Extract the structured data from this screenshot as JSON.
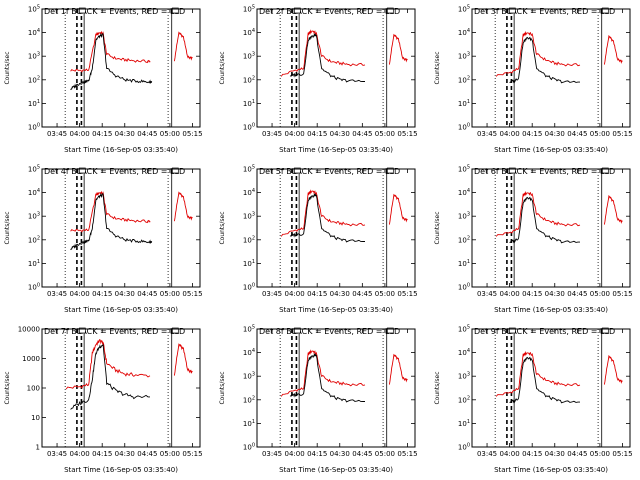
{
  "chart_data": {
    "type": "line",
    "layout": "3x3 grid",
    "y_scale": "log",
    "x_ticks": [
      "03:45",
      "04:00",
      "04:15",
      "04:30",
      "04:45",
      "05:00",
      "05:15"
    ],
    "x_range": [
      "03:35",
      "05:20"
    ],
    "xlabel": "Start Time (16-Sep-05 03:35:40)",
    "ylabel": "Counts/sec",
    "colors": {
      "events": "#000000",
      "lld": "#e00000"
    },
    "panels": [
      {
        "title": "Det 1f BLACK = Events, RED = LLD",
        "y_tick_labels": [
          "10^0",
          "10^1",
          "10^2",
          "10^3",
          "10^4",
          "10^5"
        ],
        "ylim": [
          1,
          100000
        ],
        "events": [
          [
            3.9,
            40
          ],
          [
            3.95,
            55
          ],
          [
            4.0,
            70
          ],
          [
            4.05,
            80
          ],
          [
            4.1,
            90
          ],
          [
            4.14,
            300
          ],
          [
            4.18,
            5000
          ],
          [
            4.22,
            7000
          ],
          [
            4.26,
            8000
          ],
          [
            4.3,
            300
          ],
          [
            4.4,
            150
          ],
          [
            4.5,
            100
          ],
          [
            4.6,
            90
          ],
          [
            4.7,
            85
          ],
          [
            4.78,
            80
          ],
          [
            4.8,
            85
          ]
        ],
        "lld": [
          [
            3.9,
            250
          ],
          [
            4.0,
            250
          ],
          [
            4.1,
            260
          ],
          [
            4.18,
            8000
          ],
          [
            4.22,
            10000
          ],
          [
            4.26,
            9000
          ],
          [
            4.3,
            1200
          ],
          [
            4.4,
            800
          ],
          [
            4.5,
            700
          ],
          [
            4.6,
            650
          ],
          [
            4.75,
            600
          ],
          [
            4.78,
            620
          ],
          [
            5.05,
            700
          ],
          [
            5.1,
            10000
          ],
          [
            5.15,
            6000
          ],
          [
            5.2,
            900
          ],
          [
            5.25,
            850
          ]
        ]
      },
      {
        "title": "Det 2f BLACK = Events, RED = LLD",
        "y_tick_labels": [
          "10^0",
          "10^1",
          "10^2",
          "10^3",
          "10^4",
          "10^5"
        ],
        "ylim": [
          1,
          100000
        ],
        "events": [
          [
            3.95,
            150
          ],
          [
            4.0,
            160
          ],
          [
            4.1,
            180
          ],
          [
            4.15,
            5000
          ],
          [
            4.2,
            7000
          ],
          [
            4.24,
            8000
          ],
          [
            4.3,
            300
          ],
          [
            4.4,
            150
          ],
          [
            4.5,
            100
          ],
          [
            4.6,
            90
          ],
          [
            4.78,
            85
          ]
        ],
        "lld": [
          [
            3.85,
            150
          ],
          [
            4.0,
            250
          ],
          [
            4.1,
            300
          ],
          [
            4.15,
            9000
          ],
          [
            4.2,
            12000
          ],
          [
            4.24,
            9000
          ],
          [
            4.3,
            1000
          ],
          [
            4.4,
            600
          ],
          [
            4.5,
            500
          ],
          [
            4.6,
            450
          ],
          [
            4.78,
            430
          ],
          [
            5.05,
            500
          ],
          [
            5.1,
            8000
          ],
          [
            5.15,
            5000
          ],
          [
            5.2,
            800
          ],
          [
            5.25,
            700
          ]
        ]
      },
      {
        "title": "Det 3f BLACK = Events, RED = LLD",
        "y_tick_labels": [
          "10^0",
          "10^1",
          "10^2",
          "10^3",
          "10^4",
          "10^5"
        ],
        "ylim": [
          1,
          100000
        ],
        "events": [
          [
            4.0,
            80
          ],
          [
            4.05,
            90
          ],
          [
            4.1,
            120
          ],
          [
            4.15,
            4000
          ],
          [
            4.2,
            6000
          ],
          [
            4.25,
            5000
          ],
          [
            4.3,
            300
          ],
          [
            4.4,
            150
          ],
          [
            4.5,
            100
          ],
          [
            4.6,
            80
          ],
          [
            4.78,
            80
          ]
        ],
        "lld": [
          [
            3.85,
            150
          ],
          [
            4.0,
            200
          ],
          [
            4.1,
            300
          ],
          [
            4.15,
            8000
          ],
          [
            4.2,
            10000
          ],
          [
            4.25,
            8000
          ],
          [
            4.3,
            1200
          ],
          [
            4.4,
            700
          ],
          [
            4.5,
            500
          ],
          [
            4.6,
            450
          ],
          [
            4.78,
            420
          ],
          [
            5.05,
            500
          ],
          [
            5.1,
            7000
          ],
          [
            5.15,
            4000
          ],
          [
            5.2,
            700
          ],
          [
            5.25,
            600
          ]
        ]
      },
      {
        "title": "Det 4f BLACK = Events, RED = LLD",
        "y_tick_labels": [
          "10^0",
          "10^1",
          "10^2",
          "10^3",
          "10^4",
          "10^5"
        ],
        "ylim": [
          1,
          100000
        ],
        "events": [
          [
            3.9,
            40
          ],
          [
            3.95,
            55
          ],
          [
            4.0,
            70
          ],
          [
            4.05,
            80
          ],
          [
            4.1,
            90
          ],
          [
            4.14,
            300
          ],
          [
            4.18,
            5000
          ],
          [
            4.22,
            7000
          ],
          [
            4.26,
            8000
          ],
          [
            4.3,
            300
          ],
          [
            4.4,
            150
          ],
          [
            4.5,
            100
          ],
          [
            4.6,
            90
          ],
          [
            4.7,
            85
          ],
          [
            4.78,
            80
          ],
          [
            4.8,
            85
          ]
        ],
        "lld": [
          [
            3.9,
            250
          ],
          [
            4.0,
            250
          ],
          [
            4.1,
            260
          ],
          [
            4.18,
            8000
          ],
          [
            4.22,
            10000
          ],
          [
            4.26,
            9000
          ],
          [
            4.3,
            1200
          ],
          [
            4.4,
            800
          ],
          [
            4.5,
            700
          ],
          [
            4.6,
            650
          ],
          [
            4.75,
            600
          ],
          [
            4.78,
            620
          ],
          [
            5.05,
            700
          ],
          [
            5.1,
            10000
          ],
          [
            5.15,
            6000
          ],
          [
            5.2,
            900
          ],
          [
            5.25,
            850
          ]
        ]
      },
      {
        "title": "Det 5f BLACK = Events, RED = LLD",
        "y_tick_labels": [
          "10^0",
          "10^1",
          "10^2",
          "10^3",
          "10^4",
          "10^5"
        ],
        "ylim": [
          1,
          100000
        ],
        "events": [
          [
            3.95,
            150
          ],
          [
            4.0,
            160
          ],
          [
            4.1,
            180
          ],
          [
            4.15,
            5000
          ],
          [
            4.2,
            7000
          ],
          [
            4.24,
            8000
          ],
          [
            4.3,
            300
          ],
          [
            4.4,
            150
          ],
          [
            4.5,
            100
          ],
          [
            4.6,
            90
          ],
          [
            4.78,
            85
          ]
        ],
        "lld": [
          [
            3.85,
            150
          ],
          [
            4.0,
            250
          ],
          [
            4.1,
            300
          ],
          [
            4.15,
            9000
          ],
          [
            4.2,
            12000
          ],
          [
            4.24,
            9000
          ],
          [
            4.3,
            1000
          ],
          [
            4.4,
            600
          ],
          [
            4.5,
            500
          ],
          [
            4.6,
            450
          ],
          [
            4.78,
            430
          ],
          [
            5.05,
            500
          ],
          [
            5.1,
            8000
          ],
          [
            5.15,
            5000
          ],
          [
            5.2,
            800
          ],
          [
            5.25,
            700
          ]
        ]
      },
      {
        "title": "Det 6f BLACK = Events, RED = LLD",
        "y_tick_labels": [
          "10^0",
          "10^1",
          "10^2",
          "10^3",
          "10^4",
          "10^5"
        ],
        "ylim": [
          1,
          100000
        ],
        "events": [
          [
            4.0,
            80
          ],
          [
            4.05,
            90
          ],
          [
            4.1,
            120
          ],
          [
            4.15,
            4000
          ],
          [
            4.2,
            6000
          ],
          [
            4.25,
            5000
          ],
          [
            4.3,
            300
          ],
          [
            4.4,
            150
          ],
          [
            4.5,
            100
          ],
          [
            4.6,
            80
          ],
          [
            4.78,
            80
          ]
        ],
        "lld": [
          [
            3.85,
            150
          ],
          [
            4.0,
            200
          ],
          [
            4.1,
            300
          ],
          [
            4.15,
            8000
          ],
          [
            4.2,
            10000
          ],
          [
            4.25,
            8000
          ],
          [
            4.3,
            1200
          ],
          [
            4.4,
            700
          ],
          [
            4.5,
            500
          ],
          [
            4.6,
            450
          ],
          [
            4.78,
            420
          ],
          [
            5.05,
            500
          ],
          [
            5.1,
            7000
          ],
          [
            5.15,
            4000
          ],
          [
            5.2,
            700
          ],
          [
            5.25,
            600
          ]
        ]
      },
      {
        "title": "Det 7f BLACK = Events, RED = LLD",
        "y_tick_labels": [
          "1",
          "10",
          "100",
          "1000",
          "10000"
        ],
        "ylim": [
          1,
          10000
        ],
        "events": [
          [
            3.9,
            20
          ],
          [
            4.0,
            30
          ],
          [
            4.1,
            40
          ],
          [
            4.14,
            200
          ],
          [
            4.18,
            1500
          ],
          [
            4.22,
            2500
          ],
          [
            4.26,
            3000
          ],
          [
            4.3,
            150
          ],
          [
            4.4,
            80
          ],
          [
            4.5,
            60
          ],
          [
            4.6,
            50
          ],
          [
            4.78,
            50
          ]
        ],
        "lld": [
          [
            3.85,
            100
          ],
          [
            4.0,
            110
          ],
          [
            4.1,
            130
          ],
          [
            4.14,
            1500
          ],
          [
            4.18,
            3000
          ],
          [
            4.22,
            4000
          ],
          [
            4.26,
            3500
          ],
          [
            4.3,
            700
          ],
          [
            4.4,
            400
          ],
          [
            4.5,
            300
          ],
          [
            4.6,
            280
          ],
          [
            4.78,
            260
          ],
          [
            5.05,
            300
          ],
          [
            5.1,
            3000
          ],
          [
            5.15,
            2000
          ],
          [
            5.2,
            400
          ],
          [
            5.25,
            350
          ]
        ]
      },
      {
        "title": "Det 8f BLACK = Events, RED = LLD",
        "y_tick_labels": [
          "10^0",
          "10^1",
          "10^2",
          "10^3",
          "10^4",
          "10^5"
        ],
        "ylim": [
          1,
          100000
        ],
        "events": [
          [
            3.95,
            150
          ],
          [
            4.0,
            160
          ],
          [
            4.1,
            180
          ],
          [
            4.15,
            5000
          ],
          [
            4.2,
            7000
          ],
          [
            4.24,
            8000
          ],
          [
            4.3,
            300
          ],
          [
            4.4,
            150
          ],
          [
            4.5,
            100
          ],
          [
            4.6,
            90
          ],
          [
            4.78,
            85
          ]
        ],
        "lld": [
          [
            3.85,
            150
          ],
          [
            4.0,
            250
          ],
          [
            4.1,
            300
          ],
          [
            4.15,
            9000
          ],
          [
            4.2,
            12000
          ],
          [
            4.24,
            9000
          ],
          [
            4.3,
            1000
          ],
          [
            4.4,
            600
          ],
          [
            4.5,
            500
          ],
          [
            4.6,
            450
          ],
          [
            4.78,
            430
          ],
          [
            5.05,
            500
          ],
          [
            5.1,
            8000
          ],
          [
            5.15,
            5000
          ],
          [
            5.2,
            800
          ],
          [
            5.25,
            700
          ]
        ]
      },
      {
        "title": "Det 9f BLACK = Events, RED = LLD",
        "y_tick_labels": [
          "10^0",
          "10^1",
          "10^2",
          "10^3",
          "10^4",
          "10^5"
        ],
        "ylim": [
          1,
          100000
        ],
        "events": [
          [
            4.0,
            80
          ],
          [
            4.05,
            90
          ],
          [
            4.1,
            120
          ],
          [
            4.15,
            4000
          ],
          [
            4.2,
            6000
          ],
          [
            4.25,
            5000
          ],
          [
            4.3,
            300
          ],
          [
            4.4,
            150
          ],
          [
            4.5,
            100
          ],
          [
            4.6,
            80
          ],
          [
            4.78,
            80
          ]
        ],
        "lld": [
          [
            3.85,
            150
          ],
          [
            4.0,
            200
          ],
          [
            4.1,
            300
          ],
          [
            4.15,
            8000
          ],
          [
            4.2,
            10000
          ],
          [
            4.25,
            8000
          ],
          [
            4.3,
            1200
          ],
          [
            4.4,
            700
          ],
          [
            4.5,
            500
          ],
          [
            4.6,
            450
          ],
          [
            4.78,
            420
          ],
          [
            5.05,
            500
          ],
          [
            5.1,
            7000
          ],
          [
            5.15,
            4000
          ],
          [
            5.2,
            700
          ],
          [
            5.25,
            600
          ]
        ]
      }
    ]
  }
}
